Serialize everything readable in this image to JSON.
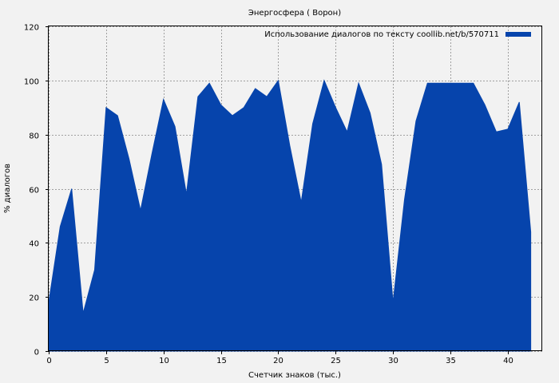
{
  "chart_data": {
    "type": "area",
    "title": "Энергосфера ( Ворон)",
    "xlabel": "Счетчик знаков (тыс.)",
    "ylabel": "% диалогов",
    "xlim": [
      0,
      43
    ],
    "ylim": [
      0,
      120
    ],
    "x_ticks": [
      0,
      5,
      10,
      15,
      20,
      25,
      30,
      35,
      40
    ],
    "y_ticks": [
      0,
      20,
      40,
      60,
      80,
      100,
      120
    ],
    "grid": true,
    "legend_position": "top-right",
    "series": [
      {
        "name": "Использование диалогов по тексту coollib.net/b/570711",
        "color": "#0644ac",
        "x": [
          0,
          1,
          2,
          3,
          4,
          5,
          6,
          7,
          8,
          9,
          10,
          11,
          12,
          13,
          14,
          15,
          16,
          17,
          18,
          19,
          20,
          21,
          22,
          23,
          24,
          25,
          26,
          27,
          28,
          29,
          30,
          31,
          32,
          33,
          34,
          35,
          36,
          37,
          38,
          39,
          40,
          41,
          42
        ],
        "values": [
          18,
          46,
          60,
          14,
          30,
          90,
          87,
          71,
          52,
          73,
          93,
          83,
          58,
          94,
          99,
          91,
          87,
          90,
          97,
          94,
          100,
          76,
          55,
          84,
          100,
          90,
          81,
          99,
          88,
          69,
          18,
          56,
          85,
          99,
          99,
          99,
          99,
          99,
          91,
          81,
          82,
          92,
          44
        ]
      }
    ]
  }
}
